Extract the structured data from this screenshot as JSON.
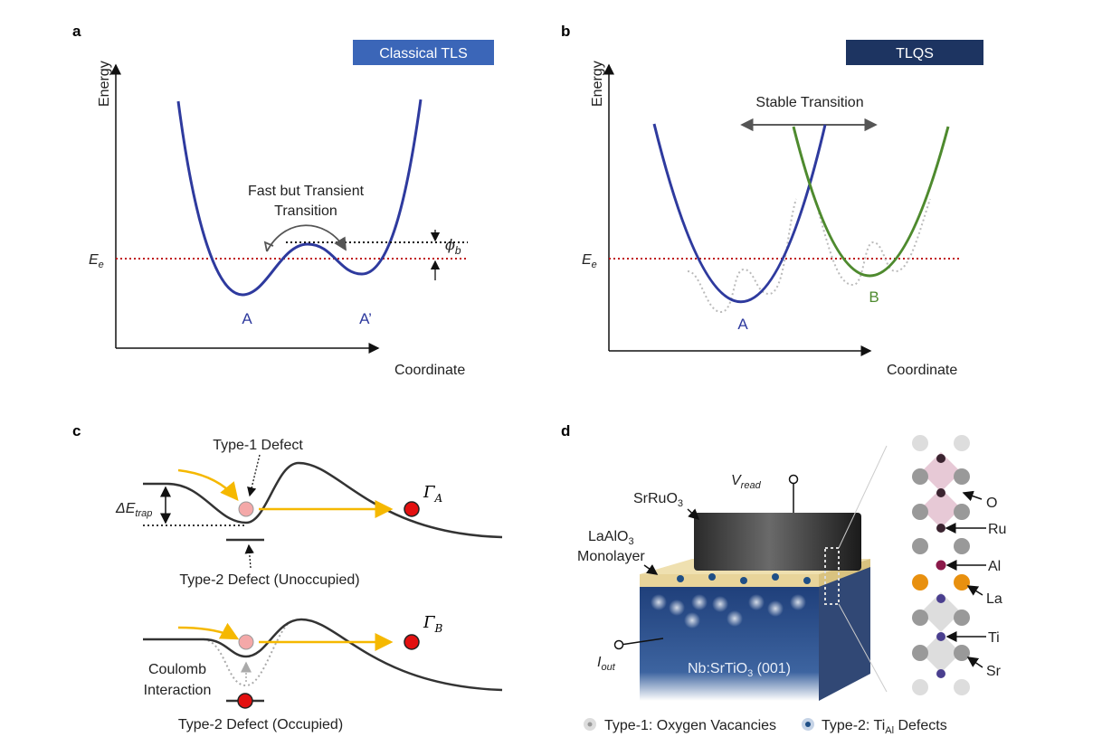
{
  "panels": {
    "a": {
      "letter": "a",
      "title": "Classical TLS",
      "title_color": "#3b66b8",
      "y_axis": "Energy",
      "x_axis": "Coordinate",
      "level_label": "E",
      "level_sub": "e",
      "transition": [
        "Fast but Transient",
        "Transition"
      ],
      "barrier_label": "ϕ",
      "barrier_sub": "b",
      "state_left": "A",
      "state_right": "A’",
      "curve_color": "#2e3a9e"
    },
    "b": {
      "letter": "b",
      "title": "TLQS",
      "title_color": "#1d3461",
      "y_axis": "Energy",
      "x_axis": "Coordinate",
      "level_label": "E",
      "level_sub": "e",
      "transition": "Stable Transition",
      "state_left": "A",
      "state_right": "B",
      "color_a": "#2e3a9e",
      "color_b": "#4e8a2e"
    },
    "c": {
      "letter": "c",
      "type1": "Type-1 Defect",
      "type2_unocc": "Type-2 Defect (Unoccupied)",
      "type2_occ": "Type-2 Defect (Occupied)",
      "trap_label": "ΔE",
      "trap_sub": "trap",
      "rate_a": "Γ",
      "rate_a_sub": "A",
      "rate_b": "Γ",
      "rate_b_sub": "B",
      "coulomb": [
        "Coulomb",
        "Interaction"
      ]
    },
    "d": {
      "letter": "d",
      "electrode": "SrRuO",
      "electrode_sub": "3",
      "vread": "V",
      "vread_sub": "read",
      "layer": "LaAlO",
      "layer_sub": "3",
      "layer2": "Monolayer",
      "iout": "I",
      "iout_sub": "out",
      "substrate": "Nb:SrTiO",
      "substrate_sub": "3",
      "substrate_tail": " (001)",
      "atoms": [
        "O",
        "Ru",
        "Al",
        "La",
        "Ti",
        "Sr"
      ],
      "legend": [
        {
          "label": "Type-1: Oxygen Vacancies"
        },
        {
          "label": "Type-2: Ti",
          "sub": "Al",
          "tail": " Defects"
        }
      ]
    }
  }
}
